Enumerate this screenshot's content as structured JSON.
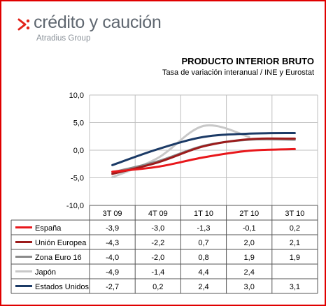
{
  "logo": {
    "name": "crédito y caución",
    "tagline": "Atradius Group"
  },
  "chart_data": {
    "type": "line",
    "title": "PRODUCTO INTERIOR BRUTO",
    "subtitle": "Tasa de variación interanual / INE y Eurostat",
    "categories": [
      "3T 09",
      "4T 09",
      "1T 10",
      "2T 10",
      "3T 10"
    ],
    "ylim": [
      -10,
      10
    ],
    "yticks": [
      "10,0",
      "5,0",
      "0,0",
      "-5,0",
      "-10,0"
    ],
    "grid": true,
    "smooth": true,
    "series": [
      {
        "name": "España",
        "color": "#e8171b",
        "values": [
          -3.9,
          -3.0,
          -1.3,
          -0.1,
          0.2
        ],
        "labels": [
          "-3,9",
          "-3,0",
          "-1,3",
          "-0,1",
          "0,2"
        ]
      },
      {
        "name": "Unión Europea",
        "color": "#9c1b1b",
        "values": [
          -4.3,
          -2.2,
          0.7,
          2.0,
          2.1
        ],
        "labels": [
          "-4,3",
          "-2,2",
          "0,7",
          "2,0",
          "2,1"
        ]
      },
      {
        "name": "Zona Euro 16",
        "color": "#8a8a8a",
        "values": [
          -4.0,
          -2.0,
          0.8,
          1.9,
          1.9
        ],
        "labels": [
          "-4,0",
          "-2,0",
          "0,8",
          "1,9",
          "1,9"
        ]
      },
      {
        "name": "Japón",
        "color": "#c8c8c8",
        "values": [
          -4.9,
          -1.4,
          4.4,
          2.4,
          null
        ],
        "labels": [
          "-4,9",
          "-1,4",
          "4,4",
          "2,4",
          ""
        ]
      },
      {
        "name": "Estados Unidos",
        "color": "#1b3a66",
        "values": [
          -2.7,
          0.2,
          2.4,
          3.0,
          3.1
        ],
        "labels": [
          "-2,7",
          "0,2",
          "2,4",
          "3,0",
          "3,1"
        ]
      }
    ]
  }
}
